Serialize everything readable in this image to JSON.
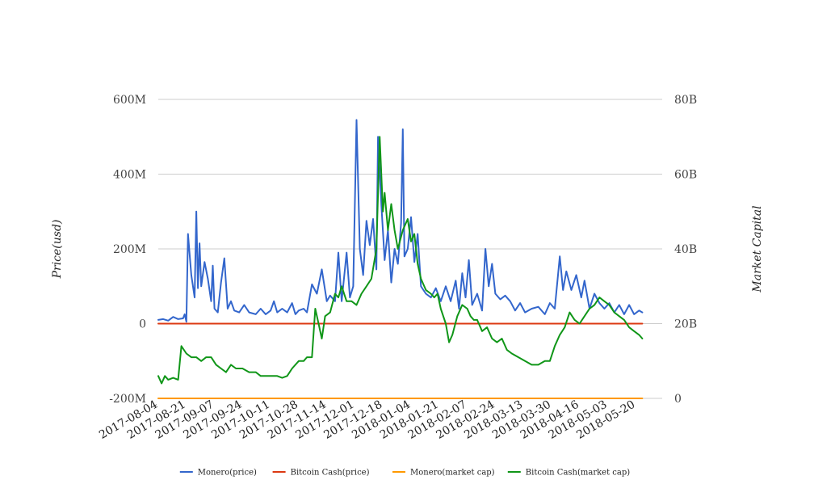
{
  "chart_data": {
    "type": "line",
    "title": "",
    "ylabel_left": "Price(usd)",
    "ylabel_right": "Market Capital",
    "xlabel": "",
    "x_tick_labels": [
      "2017-08-04",
      "2017-08-21",
      "2017-09-07",
      "2017-09-24",
      "2017-10-11",
      "2017-10-28",
      "2017-11-14",
      "2017-12-01",
      "2017-12-18",
      "2018-01-04",
      "2018-01-21",
      "2018-02-07",
      "2018-02-24",
      "2018-03-13",
      "2018-03-30",
      "2018-04-16",
      "2018-05-03",
      "2018-05-20"
    ],
    "x_range": [
      "2017-08-04",
      "2018-06-05"
    ],
    "left_axis": {
      "min": -200,
      "max": 600,
      "ticks": [
        -200,
        0,
        200,
        400,
        600
      ],
      "tick_labels": [
        "-200M",
        "0",
        "200M",
        "400M",
        "600M"
      ]
    },
    "right_axis": {
      "min": 0,
      "max": 80,
      "ticks": [
        0,
        20,
        40,
        60,
        80
      ],
      "tick_labels": [
        "0",
        "20B",
        "40B",
        "60B",
        "80B"
      ]
    },
    "grid": true,
    "legend_position": "bottom",
    "colors": {
      "Monero(price)": "#3366cc",
      "Bitcoin Cash(price)": "#dc3912",
      "Monero(market cap)": "#ff9900",
      "Bitcoin Cash(market cap)": "#109618"
    },
    "series": [
      {
        "name": "Monero(price)",
        "axis": "left",
        "points": [
          [
            "2017-08-04",
            10
          ],
          [
            "2017-08-07",
            12
          ],
          [
            "2017-08-10",
            8
          ],
          [
            "2017-08-13",
            18
          ],
          [
            "2017-08-16",
            12
          ],
          [
            "2017-08-19",
            14
          ],
          [
            "2017-08-20",
            25
          ],
          [
            "2017-08-21",
            5
          ],
          [
            "2017-08-22",
            240
          ],
          [
            "2017-08-24",
            130
          ],
          [
            "2017-08-26",
            70
          ],
          [
            "2017-08-27",
            300
          ],
          [
            "2017-08-28",
            95
          ],
          [
            "2017-08-29",
            215
          ],
          [
            "2017-08-30",
            100
          ],
          [
            "2017-09-01",
            165
          ],
          [
            "2017-09-03",
            120
          ],
          [
            "2017-09-05",
            60
          ],
          [
            "2017-09-06",
            155
          ],
          [
            "2017-09-07",
            40
          ],
          [
            "2017-09-09",
            30
          ],
          [
            "2017-09-11",
            110
          ],
          [
            "2017-09-13",
            175
          ],
          [
            "2017-09-15",
            40
          ],
          [
            "2017-09-17",
            60
          ],
          [
            "2017-09-19",
            35
          ],
          [
            "2017-09-22",
            30
          ],
          [
            "2017-09-25",
            50
          ],
          [
            "2017-09-28",
            30
          ],
          [
            "2017-10-02",
            25
          ],
          [
            "2017-10-05",
            40
          ],
          [
            "2017-10-08",
            25
          ],
          [
            "2017-10-11",
            35
          ],
          [
            "2017-10-13",
            60
          ],
          [
            "2017-10-15",
            30
          ],
          [
            "2017-10-18",
            40
          ],
          [
            "2017-10-21",
            30
          ],
          [
            "2017-10-24",
            55
          ],
          [
            "2017-10-26",
            25
          ],
          [
            "2017-10-28",
            35
          ],
          [
            "2017-10-31",
            40
          ],
          [
            "2017-11-02",
            30
          ],
          [
            "2017-11-05",
            105
          ],
          [
            "2017-11-08",
            80
          ],
          [
            "2017-11-11",
            145
          ],
          [
            "2017-11-14",
            60
          ],
          [
            "2017-11-16",
            75
          ],
          [
            "2017-11-19",
            60
          ],
          [
            "2017-11-21",
            190
          ],
          [
            "2017-11-23",
            60
          ],
          [
            "2017-11-26",
            190
          ],
          [
            "2017-11-28",
            70
          ],
          [
            "2017-11-30",
            100
          ],
          [
            "2017-12-02",
            545
          ],
          [
            "2017-12-04",
            200
          ],
          [
            "2017-12-06",
            130
          ],
          [
            "2017-12-08",
            275
          ],
          [
            "2017-12-10",
            210
          ],
          [
            "2017-12-12",
            280
          ],
          [
            "2017-12-14",
            145
          ],
          [
            "2017-12-15",
            500
          ],
          [
            "2017-12-17",
            320
          ],
          [
            "2017-12-19",
            170
          ],
          [
            "2017-12-21",
            250
          ],
          [
            "2017-12-23",
            110
          ],
          [
            "2017-12-25",
            200
          ],
          [
            "2017-12-27",
            160
          ],
          [
            "2017-12-29",
            270
          ],
          [
            "2017-12-30",
            520
          ],
          [
            "2017-12-31",
            180
          ],
          [
            "2018-01-02",
            200
          ],
          [
            "2018-01-04",
            285
          ],
          [
            "2018-01-06",
            165
          ],
          [
            "2018-01-08",
            240
          ],
          [
            "2018-01-10",
            100
          ],
          [
            "2018-01-13",
            80
          ],
          [
            "2018-01-16",
            70
          ],
          [
            "2018-01-19",
            95
          ],
          [
            "2018-01-22",
            60
          ],
          [
            "2018-01-25",
            100
          ],
          [
            "2018-01-28",
            60
          ],
          [
            "2018-01-31",
            115
          ],
          [
            "2018-02-02",
            40
          ],
          [
            "2018-02-04",
            135
          ],
          [
            "2018-02-06",
            70
          ],
          [
            "2018-02-08",
            170
          ],
          [
            "2018-02-10",
            50
          ],
          [
            "2018-02-13",
            80
          ],
          [
            "2018-02-16",
            35
          ],
          [
            "2018-02-18",
            200
          ],
          [
            "2018-02-20",
            100
          ],
          [
            "2018-02-22",
            160
          ],
          [
            "2018-02-24",
            80
          ],
          [
            "2018-02-27",
            65
          ],
          [
            "2018-03-02",
            75
          ],
          [
            "2018-03-05",
            60
          ],
          [
            "2018-03-08",
            35
          ],
          [
            "2018-03-11",
            55
          ],
          [
            "2018-03-14",
            30
          ],
          [
            "2018-03-18",
            40
          ],
          [
            "2018-03-22",
            45
          ],
          [
            "2018-03-26",
            25
          ],
          [
            "2018-03-29",
            55
          ],
          [
            "2018-04-01",
            40
          ],
          [
            "2018-04-04",
            180
          ],
          [
            "2018-04-06",
            90
          ],
          [
            "2018-04-08",
            140
          ],
          [
            "2018-04-11",
            90
          ],
          [
            "2018-04-14",
            130
          ],
          [
            "2018-04-17",
            70
          ],
          [
            "2018-04-19",
            115
          ],
          [
            "2018-04-22",
            40
          ],
          [
            "2018-04-25",
            80
          ],
          [
            "2018-04-28",
            55
          ],
          [
            "2018-05-01",
            40
          ],
          [
            "2018-05-04",
            55
          ],
          [
            "2018-05-07",
            30
          ],
          [
            "2018-05-10",
            50
          ],
          [
            "2018-05-13",
            25
          ],
          [
            "2018-05-16",
            50
          ],
          [
            "2018-05-19",
            25
          ],
          [
            "2018-05-22",
            35
          ],
          [
            "2018-05-24",
            30
          ]
        ]
      },
      {
        "name": "Bitcoin Cash(price)",
        "axis": "left",
        "points": [
          [
            "2017-08-04",
            0
          ],
          [
            "2018-05-24",
            0
          ]
        ]
      },
      {
        "name": "Monero(market cap)",
        "axis": "left",
        "points": [
          [
            "2017-08-04",
            -200
          ],
          [
            "2018-05-24",
            -200
          ]
        ]
      },
      {
        "name": "Bitcoin Cash(market cap)",
        "axis": "right",
        "points": [
          [
            "2017-08-04",
            6
          ],
          [
            "2017-08-06",
            4
          ],
          [
            "2017-08-08",
            6
          ],
          [
            "2017-08-10",
            5
          ],
          [
            "2017-08-13",
            5.5
          ],
          [
            "2017-08-16",
            5
          ],
          [
            "2017-08-18",
            14
          ],
          [
            "2017-08-21",
            12
          ],
          [
            "2017-08-24",
            11
          ],
          [
            "2017-08-27",
            11
          ],
          [
            "2017-08-30",
            10
          ],
          [
            "2017-09-02",
            11
          ],
          [
            "2017-09-05",
            11
          ],
          [
            "2017-09-08",
            9
          ],
          [
            "2017-09-11",
            8
          ],
          [
            "2017-09-14",
            7
          ],
          [
            "2017-09-17",
            9
          ],
          [
            "2017-09-20",
            8
          ],
          [
            "2017-09-24",
            8
          ],
          [
            "2017-09-28",
            7
          ],
          [
            "2017-10-02",
            7
          ],
          [
            "2017-10-05",
            6
          ],
          [
            "2017-10-08",
            6
          ],
          [
            "2017-10-11",
            6
          ],
          [
            "2017-10-15",
            6
          ],
          [
            "2017-10-18",
            5.5
          ],
          [
            "2017-10-21",
            6
          ],
          [
            "2017-10-24",
            8
          ],
          [
            "2017-10-28",
            10
          ],
          [
            "2017-10-31",
            10
          ],
          [
            "2017-11-02",
            11
          ],
          [
            "2017-11-05",
            11
          ],
          [
            "2017-11-07",
            24
          ],
          [
            "2017-11-09",
            20
          ],
          [
            "2017-11-11",
            16
          ],
          [
            "2017-11-13",
            22
          ],
          [
            "2017-11-16",
            23
          ],
          [
            "2017-11-19",
            28
          ],
          [
            "2017-11-21",
            27
          ],
          [
            "2017-11-23",
            30
          ],
          [
            "2017-11-26",
            26
          ],
          [
            "2017-11-29",
            26
          ],
          [
            "2017-12-02",
            25
          ],
          [
            "2017-12-05",
            28
          ],
          [
            "2017-12-08",
            30
          ],
          [
            "2017-12-11",
            32
          ],
          [
            "2017-12-14",
            40
          ],
          [
            "2017-12-16",
            70
          ],
          [
            "2017-12-18",
            50
          ],
          [
            "2017-12-19",
            55
          ],
          [
            "2017-12-21",
            45
          ],
          [
            "2017-12-23",
            52
          ],
          [
            "2017-12-25",
            45
          ],
          [
            "2017-12-27",
            40
          ],
          [
            "2017-12-30",
            45
          ],
          [
            "2018-01-02",
            48
          ],
          [
            "2018-01-04",
            42
          ],
          [
            "2018-01-06",
            44
          ],
          [
            "2018-01-08",
            36
          ],
          [
            "2018-01-10",
            32
          ],
          [
            "2018-01-13",
            29
          ],
          [
            "2018-01-16",
            28
          ],
          [
            "2018-01-18",
            27
          ],
          [
            "2018-01-20",
            28
          ],
          [
            "2018-01-22",
            24
          ],
          [
            "2018-01-25",
            20
          ],
          [
            "2018-01-27",
            15
          ],
          [
            "2018-01-29",
            17
          ],
          [
            "2018-02-01",
            22
          ],
          [
            "2018-02-04",
            25
          ],
          [
            "2018-02-07",
            24
          ],
          [
            "2018-02-09",
            22
          ],
          [
            "2018-02-11",
            21
          ],
          [
            "2018-02-13",
            21
          ],
          [
            "2018-02-16",
            18
          ],
          [
            "2018-02-19",
            19
          ],
          [
            "2018-02-22",
            16
          ],
          [
            "2018-02-25",
            15
          ],
          [
            "2018-02-28",
            16
          ],
          [
            "2018-03-03",
            13
          ],
          [
            "2018-03-06",
            12
          ],
          [
            "2018-03-10",
            11
          ],
          [
            "2018-03-14",
            10
          ],
          [
            "2018-03-18",
            9
          ],
          [
            "2018-03-22",
            9
          ],
          [
            "2018-03-26",
            10
          ],
          [
            "2018-03-29",
            10
          ],
          [
            "2018-04-01",
            14
          ],
          [
            "2018-04-04",
            17
          ],
          [
            "2018-04-07",
            19
          ],
          [
            "2018-04-10",
            23
          ],
          [
            "2018-04-13",
            21
          ],
          [
            "2018-04-16",
            20
          ],
          [
            "2018-04-19",
            22
          ],
          [
            "2018-04-22",
            24
          ],
          [
            "2018-04-25",
            25
          ],
          [
            "2018-04-28",
            27
          ],
          [
            "2018-05-01",
            26
          ],
          [
            "2018-05-04",
            25
          ],
          [
            "2018-05-07",
            23
          ],
          [
            "2018-05-10",
            22
          ],
          [
            "2018-05-13",
            21
          ],
          [
            "2018-05-16",
            19
          ],
          [
            "2018-05-19",
            18
          ],
          [
            "2018-05-22",
            17
          ],
          [
            "2018-05-24",
            16
          ]
        ]
      }
    ]
  }
}
